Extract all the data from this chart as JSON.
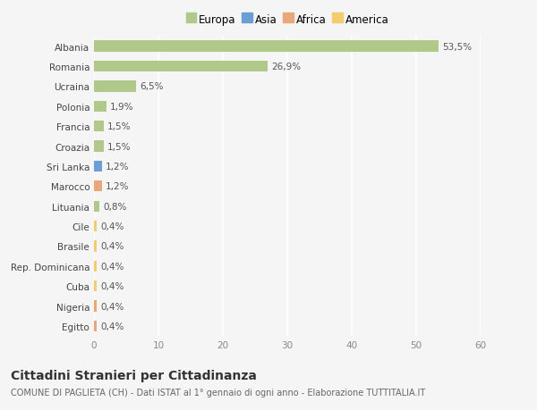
{
  "categories": [
    "Albania",
    "Romania",
    "Ucraina",
    "Polonia",
    "Francia",
    "Croazia",
    "Sri Lanka",
    "Marocco",
    "Lituania",
    "Cile",
    "Brasile",
    "Rep. Dominicana",
    "Cuba",
    "Nigeria",
    "Egitto"
  ],
  "values": [
    53.5,
    26.9,
    6.5,
    1.9,
    1.5,
    1.5,
    1.2,
    1.2,
    0.8,
    0.4,
    0.4,
    0.4,
    0.4,
    0.4,
    0.4
  ],
  "labels": [
    "53,5%",
    "26,9%",
    "6,5%",
    "1,9%",
    "1,5%",
    "1,5%",
    "1,2%",
    "1,2%",
    "0,8%",
    "0,4%",
    "0,4%",
    "0,4%",
    "0,4%",
    "0,4%",
    "0,4%"
  ],
  "continents": [
    "Europa",
    "Europa",
    "Europa",
    "Europa",
    "Europa",
    "Europa",
    "Asia",
    "Africa",
    "Europa",
    "America",
    "America",
    "America",
    "America",
    "Africa",
    "Africa"
  ],
  "continent_colors": {
    "Europa": "#b0c98a",
    "Asia": "#6b9fd4",
    "Africa": "#e8a87c",
    "America": "#f2cc6e"
  },
  "legend_order": [
    "Europa",
    "Asia",
    "Africa",
    "America"
  ],
  "title": "Cittadini Stranieri per Cittadinanza",
  "subtitle": "COMUNE DI PAGLIETA (CH) - Dati ISTAT al 1° gennaio di ogni anno - Elaborazione TUTTITALIA.IT",
  "xlim": [
    0,
    60
  ],
  "xticks": [
    0,
    10,
    20,
    30,
    40,
    50,
    60
  ],
  "background_color": "#f5f5f5",
  "bar_alpha": 1.0,
  "grid_color": "#ffffff",
  "title_fontsize": 10,
  "subtitle_fontsize": 7,
  "label_fontsize": 7.5,
  "tick_fontsize": 7.5,
  "legend_fontsize": 8.5
}
